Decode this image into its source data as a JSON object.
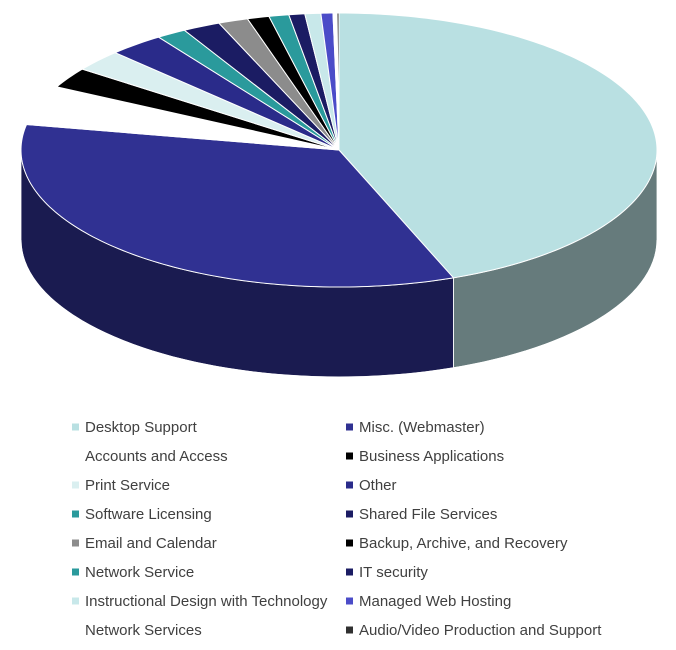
{
  "chart_data": {
    "type": "pie",
    "style": "3d",
    "title": "",
    "legend_position": "bottom",
    "start_angle_deg": 0,
    "direction": "clockwise",
    "slices": [
      {
        "label": "Desktop Support",
        "value": 43.7,
        "color": "#b9e0e2"
      },
      {
        "label": "Misc. (Webmaster)",
        "value": 33.5,
        "color": "#303192"
      },
      {
        "label": "Accounts and Access",
        "value": 4.6,
        "color": "#ffffff"
      },
      {
        "label": "Business Applications",
        "value": 2.4,
        "color": "#000000"
      },
      {
        "label": "Print Service",
        "value": 2.5,
        "color": "#daeff0"
      },
      {
        "label": "Other",
        "value": 2.8,
        "color": "#2a2b8a"
      },
      {
        "label": "Software Licensing",
        "value": 1.5,
        "color": "#2a9a9c"
      },
      {
        "label": "Shared File Services",
        "value": 1.9,
        "color": "#1b1c63"
      },
      {
        "label": "Email and Calendar",
        "value": 1.5,
        "color": "#8c8c8c"
      },
      {
        "label": "Backup, Archive, and Recovery",
        "value": 1.1,
        "color": "#000000"
      },
      {
        "label": "Network Service",
        "value": 1.0,
        "color": "#2a9a9c"
      },
      {
        "label": "IT security",
        "value": 0.8,
        "color": "#1b1c63"
      },
      {
        "label": "Instructional Design with Technology",
        "value": 0.8,
        "color": "#c8e8ea"
      },
      {
        "label": "Managed Web Hosting",
        "value": 0.6,
        "color": "#4b4cc8"
      },
      {
        "label": "Network Services",
        "value": 0.2,
        "color": "#ffffff"
      },
      {
        "label": "Audio/Video Production and Support",
        "value": 0.1,
        "color": "#303030"
      }
    ]
  }
}
